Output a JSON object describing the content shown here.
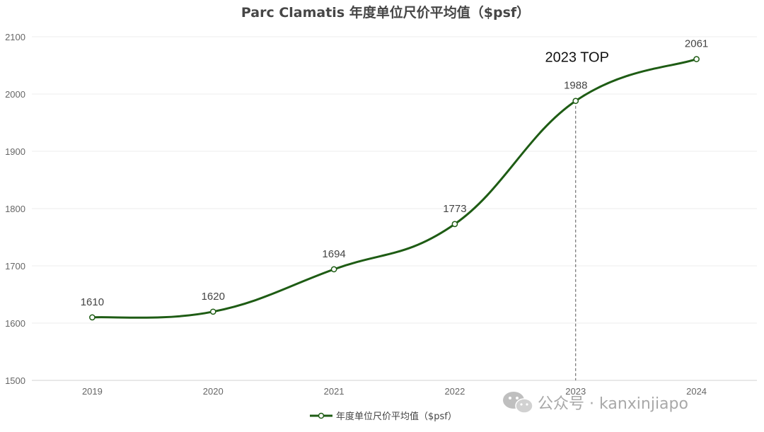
{
  "chart_data": {
    "type": "line",
    "title": "Parc Clamatis 年度单位尺价平均值（$psf）",
    "categories": [
      "2019",
      "2020",
      "2021",
      "2022",
      "2023",
      "2024"
    ],
    "series": [
      {
        "name": "年度单位尺价平均值（$psf）",
        "values": [
          1610,
          1620,
          1694,
          1773,
          1988,
          2061
        ],
        "color": "#1e5c14"
      }
    ],
    "ylim": [
      1500,
      2100
    ],
    "yticks": [
      1500,
      1600,
      1700,
      1800,
      1900,
      2000,
      2100
    ],
    "smooth": true,
    "grid": true,
    "legend_position": "bottom-center",
    "annotation": {
      "text": "2023 TOP",
      "category": "2023",
      "style": "dashed vertical line"
    }
  },
  "watermark": {
    "text": "公众号 · kanxinjiapo",
    "icon": "wechat-icon"
  }
}
